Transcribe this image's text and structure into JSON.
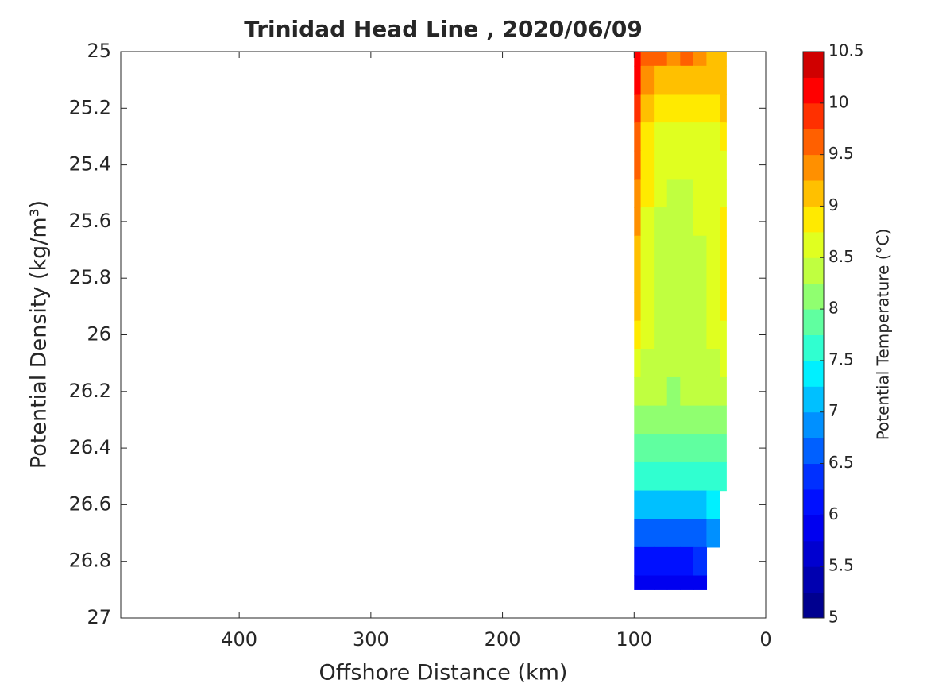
{
  "chart_data": {
    "type": "contourf",
    "title": "Trinidad Head Line , 2020/06/09",
    "xlabel": "Offshore Distance (km)",
    "ylabel": "Potential Density (kg/m³)",
    "colorbar_label": "Potential Temperature (°C)",
    "xlim": [
      490,
      0
    ],
    "xticks": [
      400,
      300,
      200,
      100,
      0
    ],
    "ylim": [
      25,
      27
    ],
    "yticks": [
      25,
      25.2,
      25.4,
      25.6,
      25.8,
      26,
      26.2,
      26.4,
      26.6,
      26.8,
      27
    ],
    "clim": [
      5,
      10.5
    ],
    "cticks": [
      5,
      5.5,
      6,
      6.5,
      7,
      7.5,
      8,
      8.5,
      9,
      9.5,
      10,
      10.5
    ],
    "colormap": [
      "#00008f",
      "#0000b0",
      "#0000d0",
      "#0000f0",
      "#0010ff",
      "#0030ff",
      "#0060ff",
      "#0090ff",
      "#00c0ff",
      "#00f0ff",
      "#30ffd0",
      "#60ffa0",
      "#90ff70",
      "#c0ff40",
      "#e0ff20",
      "#ffea00",
      "#ffc000",
      "#ff9000",
      "#ff6000",
      "#ff3000",
      "#ff0000",
      "#d00000"
    ],
    "x": [
      100,
      90,
      80,
      70,
      60,
      50,
      40,
      30
    ],
    "y": [
      25,
      25.1,
      25.2,
      25.3,
      25.4,
      25.5,
      25.6,
      25.7,
      25.8,
      25.9,
      26,
      26.1,
      26.2,
      26.3,
      26.4,
      26.5,
      26.6,
      26.7,
      26.8,
      26.9
    ],
    "z": [
      [
        10.2,
        9.6,
        9.7,
        9.4,
        9.6,
        9.3,
        9.0,
        9.0
      ],
      [
        10.0,
        9.3,
        9.1,
        9.2,
        9.0,
        9.0,
        9.0,
        9.0
      ],
      [
        9.8,
        9.0,
        8.8,
        8.8,
        8.8,
        8.8,
        8.9,
        9.0
      ],
      [
        9.6,
        8.9,
        8.7,
        8.7,
        8.7,
        8.7,
        8.7,
        8.8
      ],
      [
        9.5,
        8.8,
        8.7,
        8.7,
        8.7,
        8.7,
        8.7,
        8.7
      ],
      [
        9.4,
        8.8,
        8.5,
        8.4,
        8.4,
        8.6,
        8.7,
        8.7
      ],
      [
        9.3,
        8.7,
        8.4,
        8.4,
        8.4,
        8.5,
        8.7,
        8.8
      ],
      [
        9.2,
        8.7,
        8.4,
        8.4,
        8.4,
        8.4,
        8.6,
        8.8
      ],
      [
        9.1,
        8.6,
        8.4,
        8.4,
        8.4,
        8.4,
        8.5,
        8.8
      ],
      [
        9.0,
        8.6,
        8.4,
        8.4,
        8.4,
        8.4,
        8.5,
        8.8
      ],
      [
        8.9,
        8.5,
        8.4,
        8.4,
        8.4,
        8.4,
        8.5,
        8.7
      ],
      [
        8.6,
        8.4,
        8.4,
        8.4,
        8.4,
        8.4,
        8.4,
        8.5
      ],
      [
        8.4,
        8.4,
        8.3,
        8.2,
        8.3,
        8.3,
        8.3,
        8.4
      ],
      [
        8.1,
        8.1,
        8.1,
        8.1,
        8.1,
        8.1,
        8.1,
        8.2
      ],
      [
        7.9,
        7.9,
        7.8,
        7.9,
        7.9,
        7.9,
        7.8,
        7.9
      ],
      [
        7.6,
        7.6,
        7.5,
        7.6,
        7.6,
        7.6,
        7.6,
        7.6
      ],
      [
        7.2,
        7.2,
        7.2,
        7.2,
        7.2,
        7.2,
        7.3,
        null
      ],
      [
        6.7,
        6.6,
        6.6,
        6.6,
        6.6,
        6.7,
        6.8,
        null
      ],
      [
        6.2,
        6.2,
        6.1,
        6.1,
        6.2,
        6.3,
        null,
        null
      ],
      [
        5.9,
        5.9,
        5.9,
        5.9,
        5.9,
        5.9,
        null,
        null
      ]
    ]
  }
}
